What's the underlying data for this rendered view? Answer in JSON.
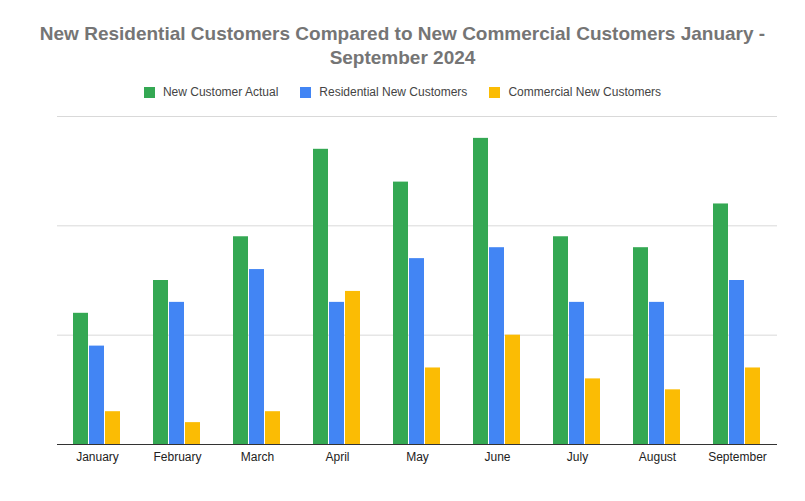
{
  "chart_data": {
    "type": "bar",
    "title": "New Residential Customers Compared to New Commercial Customers January - September 2024",
    "categories": [
      "January",
      "February",
      "March",
      "April",
      "May",
      "June",
      "July",
      "August",
      "September"
    ],
    "series": [
      {
        "name": "New Customer Actual",
        "color": "#34a853",
        "values": [
          12,
          15,
          19,
          27,
          24,
          28,
          19,
          18,
          22
        ]
      },
      {
        "name": "Residential New Customers",
        "color": "#4285f4",
        "values": [
          9,
          13,
          16,
          13,
          17,
          18,
          13,
          13,
          15
        ]
      },
      {
        "name": "Commercial New Customers",
        "color": "#fbbc04",
        "values": [
          3,
          2,
          3,
          14,
          7,
          10,
          6,
          5,
          7
        ]
      }
    ],
    "ylim": [
      0,
      30
    ],
    "yticks": [
      0,
      10,
      20,
      30
    ],
    "grid": true,
    "legend": "top",
    "tick_labels": "x"
  }
}
